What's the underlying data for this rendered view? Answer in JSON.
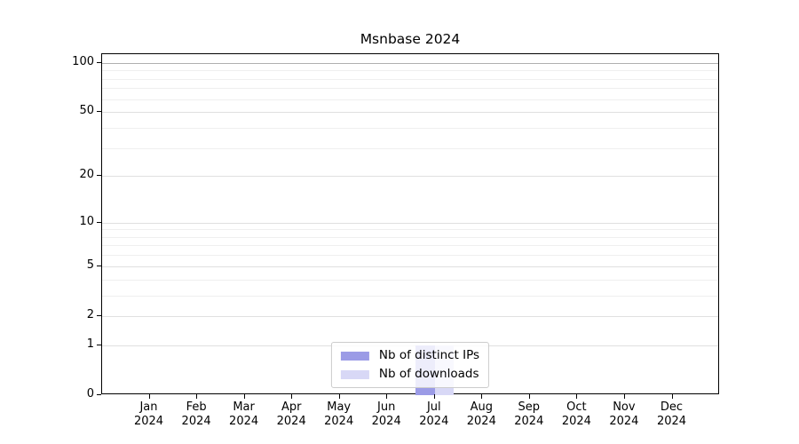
{
  "chart_data": {
    "type": "bar",
    "title": "Msnbase 2024",
    "categories": [
      "Jan",
      "Feb",
      "Mar",
      "Apr",
      "May",
      "Jun",
      "Jul",
      "Aug",
      "Sep",
      "Oct",
      "Nov",
      "Dec"
    ],
    "year_label": "2024",
    "series": [
      {
        "name": "Nb of distinct IPs",
        "color": "#9b9be6",
        "values": [
          0,
          0,
          0,
          0,
          0,
          0,
          1,
          0,
          0,
          0,
          0,
          0
        ]
      },
      {
        "name": "Nb of downloads",
        "color": "#d8d8f6",
        "values": [
          0,
          0,
          0,
          0,
          0,
          0,
          1,
          0,
          0,
          0,
          0,
          0
        ]
      }
    ],
    "yscale": "log1p",
    "yticks": [
      0,
      1,
      2,
      5,
      10,
      20,
      50,
      100
    ],
    "gridlines": [
      1,
      2,
      3,
      4,
      5,
      6,
      7,
      8,
      9,
      10,
      20,
      30,
      40,
      50,
      60,
      70,
      80,
      90,
      100
    ],
    "ylim": [
      0,
      113
    ],
    "xlim": [
      -1,
      12
    ],
    "grid": true,
    "legend_position": "lower center"
  },
  "colors": {
    "grid_top": "#b0b0b0",
    "grid_major": "#e0e0e0",
    "grid_minor": "#efefef",
    "axis": "#000000",
    "legend_border": "#cccccc",
    "background": "#ffffff"
  }
}
